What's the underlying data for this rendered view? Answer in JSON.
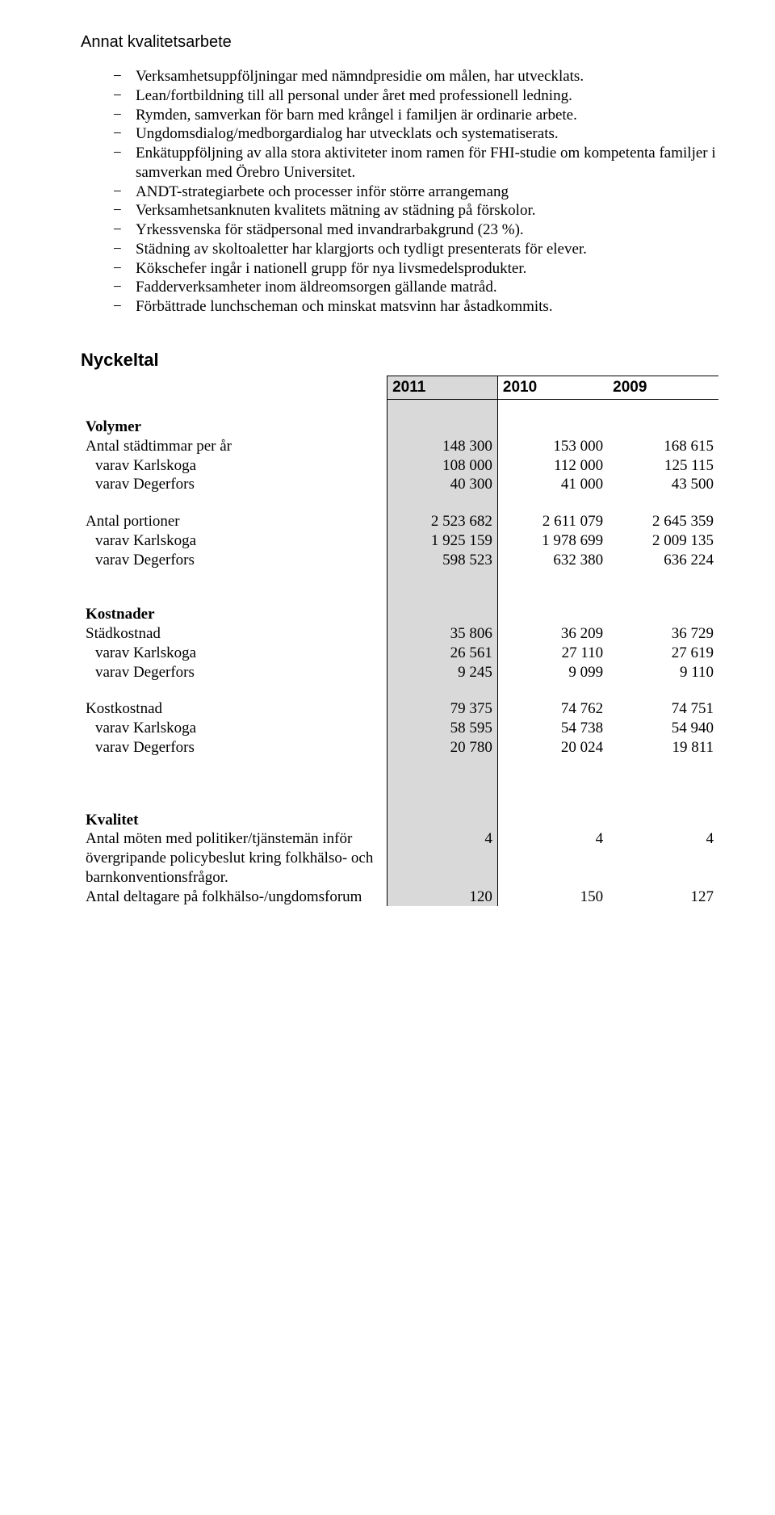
{
  "headings": {
    "main": "Annat kvalitetsarbete",
    "nyckeltal": "Nyckeltal"
  },
  "bullets": [
    "Verksamhetsuppföljningar med nämndpresidie om målen, har utvecklats.",
    "Lean/fortbildning till all personal under året med professionell ledning.",
    "Rymden, samverkan för barn med krångel i familjen är ordinarie arbete.",
    "Ungdomsdialog/medborgardialog har utvecklats och systematiserats.",
    "Enkätuppföljning av alla stora aktiviteter inom ramen för FHI-studie om kompetenta familjer i samverkan med Örebro Universitet.",
    "ANDT-strategiarbete och processer inför större arrangemang",
    "Verksamhetsanknuten kvalitets mätning av städning på förskolor.",
    "Yrkessvenska för städpersonal med invandrarbakgrund (23 %).",
    "Städning av skoltoaletter har klargjorts och tydligt presenterats för elever.",
    "Kökschefer ingår i nationell grupp för nya livsmedelsprodukter.",
    "Fadderverksamheter inom äldreomsorgen gällande matråd.",
    "Förbättrade lunchscheman och minskat matsvinn har åstadkommits."
  ],
  "table": {
    "years": [
      "2011",
      "2010",
      "2009"
    ],
    "highlight_year_index": 0,
    "groups": [
      {
        "title": "Volymer",
        "rows": [
          {
            "label": "Antal städtimmar per år",
            "indent": false,
            "values": [
              "148 300",
              "153 000",
              "168 615"
            ]
          },
          {
            "label": "varav Karlskoga",
            "indent": true,
            "values": [
              "108 000",
              "112 000",
              "125 115"
            ]
          },
          {
            "label": "varav Degerfors",
            "indent": true,
            "values": [
              "40 300",
              "41 000",
              "43 500"
            ]
          }
        ]
      },
      {
        "title": "",
        "rows": [
          {
            "label": "Antal portioner",
            "indent": false,
            "values": [
              "2 523 682",
              "2 611 079",
              "2 645 359"
            ]
          },
          {
            "label": "varav Karlskoga",
            "indent": true,
            "values": [
              "1 925 159",
              "1 978 699",
              "2 009 135"
            ]
          },
          {
            "label": "varav Degerfors",
            "indent": true,
            "values": [
              "598 523",
              "632 380",
              "636 224"
            ]
          }
        ]
      },
      {
        "title": "Kostnader",
        "rows": [
          {
            "label": "Städkostnad",
            "indent": false,
            "values": [
              "35 806",
              "36 209",
              "36 729"
            ]
          },
          {
            "label": "varav Karlskoga",
            "indent": true,
            "values": [
              "26 561",
              "27 110",
              "27 619"
            ]
          },
          {
            "label": "varav Degerfors",
            "indent": true,
            "values": [
              "9 245",
              "9 099",
              "9 110"
            ]
          }
        ]
      },
      {
        "title": "",
        "rows": [
          {
            "label": "Kostkostnad",
            "indent": false,
            "values": [
              "79 375",
              "74 762",
              "74 751"
            ]
          },
          {
            "label": "varav Karlskoga",
            "indent": true,
            "values": [
              "58 595",
              "54 738",
              "54 940"
            ]
          },
          {
            "label": "varav Degerfors",
            "indent": true,
            "values": [
              "20 780",
              "20 024",
              "19 811"
            ]
          }
        ]
      },
      {
        "title": "Kvalitet",
        "rows": [
          {
            "label": "Antal möten med politiker/tjänstemän inför övergripande policybeslut kring folkhälso- och barnkonventionsfrågor.",
            "indent": false,
            "values": [
              "4",
              "4",
              "4"
            ]
          },
          {
            "label": "Antal deltagare på folkhälso-/ungdomsforum",
            "indent": false,
            "values": [
              "120",
              "150",
              "127"
            ]
          }
        ]
      }
    ]
  }
}
